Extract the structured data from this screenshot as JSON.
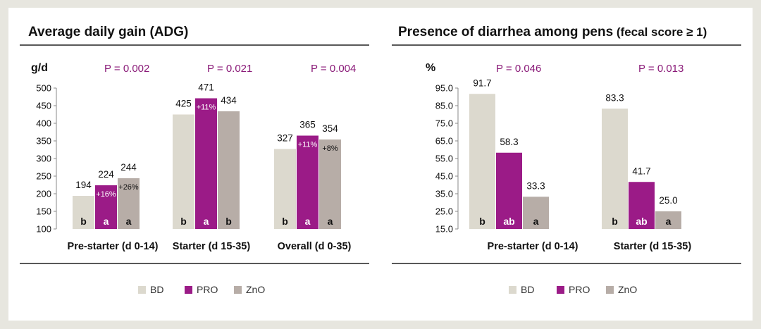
{
  "colors": {
    "BD": "#dcd9ce",
    "PRO": "#9b1b87",
    "ZnO": "#b7ada7",
    "pvalue": "#8a1a78"
  },
  "legend": [
    {
      "name": "BD",
      "color": "#dcd9ce"
    },
    {
      "name": "PRO",
      "color": "#9b1b87"
    },
    {
      "name": "ZnO",
      "color": "#b7ada7"
    }
  ],
  "chart_data": [
    {
      "type": "bar",
      "title": "Average daily gain (ADG)",
      "ylabel": "g/d",
      "ylim": [
        100,
        500
      ],
      "yticks": [
        100,
        150,
        200,
        250,
        300,
        350,
        400,
        450,
        500
      ],
      "categories": [
        "Pre-starter (d 0-14)",
        "Starter (d 15-35)",
        "Overall (d 0-35)"
      ],
      "p_values": [
        "P = 0.002",
        "P = 0.021",
        "P = 0.004"
      ],
      "series": [
        {
          "name": "BD",
          "values": [
            194,
            425,
            327
          ],
          "letters": [
            "b",
            "b",
            "b"
          ],
          "change": [
            "",
            "",
            ""
          ]
        },
        {
          "name": "PRO",
          "values": [
            224,
            471,
            365
          ],
          "letters": [
            "a",
            "a",
            "a"
          ],
          "change": [
            "+16%",
            "+11%",
            "+11%"
          ]
        },
        {
          "name": "ZnO",
          "values": [
            244,
            434,
            354
          ],
          "letters": [
            "a",
            "b",
            "a"
          ],
          "change": [
            "+26%",
            "",
            "+8%"
          ]
        }
      ]
    },
    {
      "type": "bar",
      "title": "Presence of diarrhea among pens",
      "subtitle": "(fecal score ≥ 1)",
      "ylabel": "%",
      "ylim": [
        15,
        95
      ],
      "yticks": [
        "15.0",
        "25.0",
        "35.0",
        "45.0",
        "55.0",
        "65.0",
        "75.0",
        "85.0",
        "95.0"
      ],
      "categories": [
        "Pre-starter (d 0-14)",
        "Starter (d 15-35)"
      ],
      "p_values": [
        "P = 0.046",
        "P = 0.013"
      ],
      "series": [
        {
          "name": "BD",
          "values": [
            91.7,
            83.3
          ],
          "labels": [
            "91.7",
            "83.3"
          ],
          "letters": [
            "b",
            "b"
          ]
        },
        {
          "name": "PRO",
          "values": [
            58.3,
            41.7
          ],
          "labels": [
            "58.3",
            "41.7"
          ],
          "letters": [
            "ab",
            "ab"
          ]
        },
        {
          "name": "ZnO",
          "values": [
            33.3,
            25.0
          ],
          "labels": [
            "33.3",
            "25.0"
          ],
          "letters": [
            "a",
            "a"
          ]
        }
      ]
    }
  ]
}
